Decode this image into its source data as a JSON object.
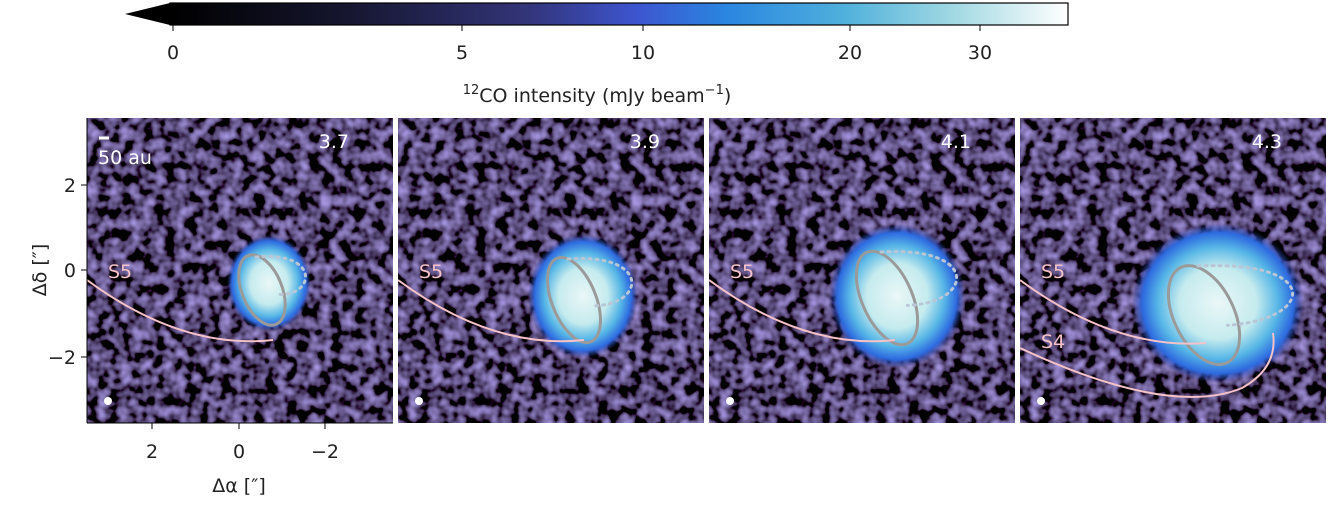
{
  "colorbar": {
    "ticks": [
      "0",
      "5",
      "10",
      "20",
      "30"
    ],
    "label_sup": "12",
    "label_main": "CO intensity (mJy beam",
    "label_sup2": "−1",
    "label_end": ")"
  },
  "y_axis": {
    "label": "Δδ [″]",
    "ticks": [
      "2",
      "0",
      "−2"
    ]
  },
  "x_axis": {
    "label": "Δα [″]",
    "ticks": [
      "2",
      "0",
      "−2"
    ]
  },
  "scale_bar": "50 au",
  "panels": [
    {
      "velocity": "3.7",
      "annotations": [
        "S5"
      ]
    },
    {
      "velocity": "3.9",
      "annotations": [
        "S5"
      ]
    },
    {
      "velocity": "4.1",
      "annotations": [
        "S5"
      ]
    },
    {
      "velocity": "4.3",
      "annotations": [
        "S5",
        "S4"
      ]
    }
  ]
}
